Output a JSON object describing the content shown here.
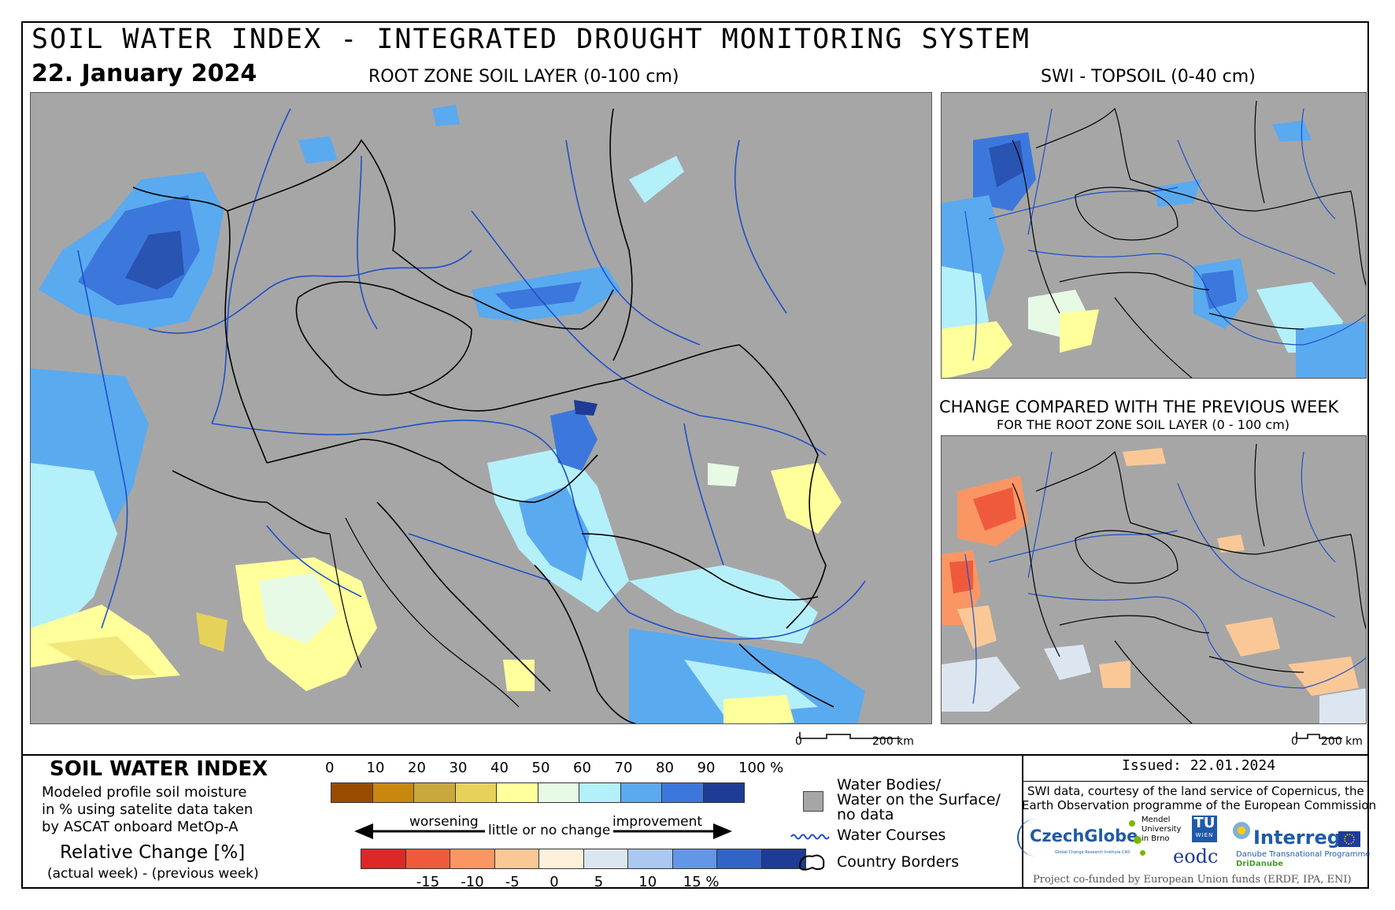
{
  "header": {
    "title": "SOIL WATER INDEX - INTEGRATED DROUGHT MONITORING SYSTEM",
    "date": "22. January 2024",
    "main_map_title": "ROOT ZONE SOIL LAYER (0-100 cm)",
    "topsoil_title": "SWI - TOPSOIL (0-40 cm)",
    "change_title": "CHANGE COMPARED WITH THE PREVIOUS WEEK",
    "change_subtitle": "FOR THE ROOT ZONE SOIL LAYER (0 - 100 cm)"
  },
  "scalebars": {
    "main_zero": "0",
    "main_label": "200 km",
    "small_zero": "0",
    "small_label": "200 km"
  },
  "legend": {
    "swi_title": "SOIL WATER INDEX",
    "swi_desc_1": "Modeled profile soil moisture",
    "swi_desc_2": "in % using satelite data taken",
    "swi_desc_3": "by ASCAT onboard MetOp-A",
    "change_title": "Relative Change [%]",
    "change_desc": "(actual week) - (previous week)",
    "swi_ticks": [
      "0",
      "10",
      "20",
      "30",
      "40",
      "50",
      "60",
      "70",
      "80",
      "90",
      "100 %"
    ],
    "swi_colors": [
      "#994c00",
      "#c8870f",
      "#c8a83c",
      "#e6d25a",
      "#ffff9b",
      "#e6fae6",
      "#b4f0fa",
      "#5aaaf0",
      "#3c78dc",
      "#1e3c96"
    ],
    "worsening": "worsening",
    "little_change": "little or no change",
    "improvement": "improvement",
    "change_ticks": [
      "-15",
      "-10",
      "-5",
      "0",
      "5",
      "10",
      "15 %"
    ],
    "change_colors": [
      "#dc2828",
      "#f05a3c",
      "#fa9664",
      "#fac896",
      "#fff0dc",
      "#dce6f0",
      "#aac8f0",
      "#6496e6",
      "#3264c8",
      "#1e3c96"
    ],
    "water_bodies_1": "Water Bodies/",
    "water_bodies_2": "Water on the Surface/",
    "water_bodies_3": "no data",
    "water_courses": "Water Courses",
    "country_borders": "Country Borders",
    "issued": "Issued: 22.01.2024",
    "credit_1": "SWI data, courtesy of the land service of Copernicus, the",
    "credit_2": "Earth Observation programme of the European Commission",
    "funding": "Project co-funded by European Union funds (ERDF, IPA, ENI)"
  },
  "logos": {
    "czechglobe": "CzechGlobe",
    "czechglobe_sub": "Global Change Research Institute CAS",
    "mendel_1": "Mendel",
    "mendel_2": "University",
    "mendel_3": "in Brno",
    "tu": "TU",
    "wien": "WIEN",
    "eodc": "eodc",
    "interreg": "Interreg",
    "interreg_sub": "Danube Transnational Programme",
    "dridanube": "DriDanube"
  },
  "colors": {
    "nodata_gray": "#a6a6a6",
    "river": "#1f4fc8",
    "border": "#000000"
  }
}
